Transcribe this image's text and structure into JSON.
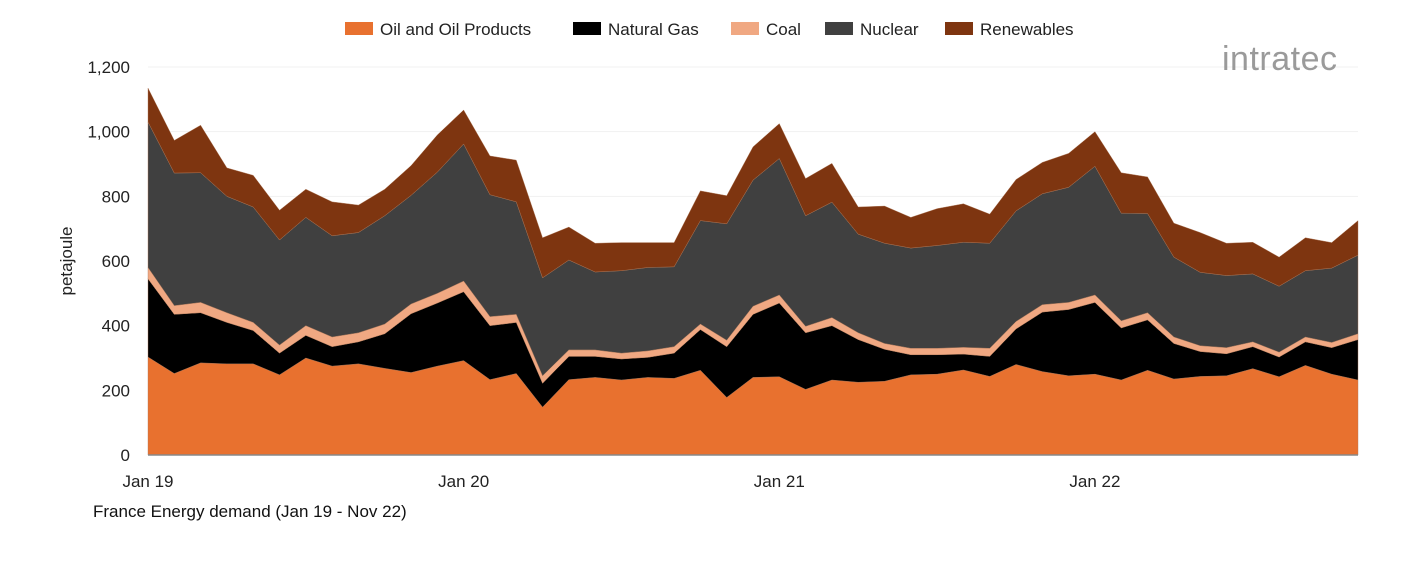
{
  "chart_data": {
    "type": "area",
    "stacked": true,
    "title": "France Energy demand (Jan 19 - Nov 22)",
    "ylabel": "petajoule",
    "xlabel": "",
    "ylim": [
      0,
      1200
    ],
    "yticks": [
      0,
      200,
      400,
      600,
      800,
      1000,
      1200
    ],
    "ytick_labels": [
      "0",
      "200",
      "400",
      "600",
      "800",
      "1,000",
      "1,200"
    ],
    "x_start": "2019-01",
    "x_end": "2022-11",
    "xtick_labels": [
      "Jan 19",
      "Jan 20",
      "Jan 21",
      "Jan 22"
    ],
    "grid": true,
    "legend_position": "top",
    "series": [
      {
        "name": "Oil and Oil Products",
        "color": "#E8712F",
        "values": [
          303,
          252,
          285,
          282,
          282,
          248,
          300,
          275,
          282,
          268,
          255,
          275,
          292,
          233,
          252,
          148,
          233,
          240,
          232,
          240,
          237,
          262,
          178,
          240,
          242,
          203,
          232,
          225,
          228,
          248,
          250,
          263,
          243,
          280,
          258,
          245,
          250,
          232,
          262,
          235,
          243,
          245,
          267,
          242,
          277,
          250,
          232
        ]
      },
      {
        "name": "Natural Gas",
        "color": "#000000",
        "values": [
          242,
          183,
          155,
          128,
          103,
          67,
          70,
          60,
          68,
          107,
          182,
          195,
          213,
          167,
          158,
          74,
          72,
          65,
          65,
          62,
          78,
          126,
          157,
          195,
          228,
          175,
          168,
          132,
          99,
          62,
          60,
          49,
          62,
          110,
          184,
          205,
          222,
          161,
          156,
          110,
          77,
          68,
          68,
          61,
          73,
          82,
          125
        ]
      },
      {
        "name": "Coal",
        "color": "#F0A882",
        "values": [
          35,
          27,
          32,
          30,
          25,
          25,
          30,
          30,
          28,
          30,
          30,
          30,
          33,
          28,
          25,
          23,
          20,
          20,
          18,
          20,
          20,
          17,
          20,
          25,
          25,
          20,
          25,
          21,
          18,
          20,
          20,
          21,
          25,
          23,
          23,
          22,
          23,
          22,
          22,
          20,
          18,
          19,
          15,
          15,
          15,
          16,
          18
        ]
      },
      {
        "name": "Nuclear",
        "color": "#404040",
        "values": [
          450,
          410,
          401,
          360,
          357,
          325,
          335,
          313,
          310,
          335,
          336,
          375,
          424,
          377,
          348,
          303,
          278,
          241,
          255,
          258,
          247,
          320,
          360,
          390,
          422,
          342,
          357,
          305,
          310,
          310,
          318,
          325,
          325,
          342,
          343,
          356,
          398,
          333,
          307,
          247,
          227,
          223,
          210,
          204,
          205,
          230,
          243
        ]
      },
      {
        "name": "Renewables",
        "color": "#7E3510",
        "values": [
          105,
          101,
          147,
          88,
          98,
          92,
          87,
          105,
          85,
          82,
          92,
          115,
          105,
          120,
          129,
          124,
          102,
          89,
          87,
          77,
          75,
          92,
          87,
          103,
          108,
          115,
          120,
          84,
          115,
          95,
          114,
          119,
          90,
          97,
          97,
          105,
          107,
          125,
          113,
          105,
          123,
          100,
          98,
          90,
          102,
          79,
          107
        ]
      }
    ]
  },
  "logo": {
    "text": "intratec"
  }
}
